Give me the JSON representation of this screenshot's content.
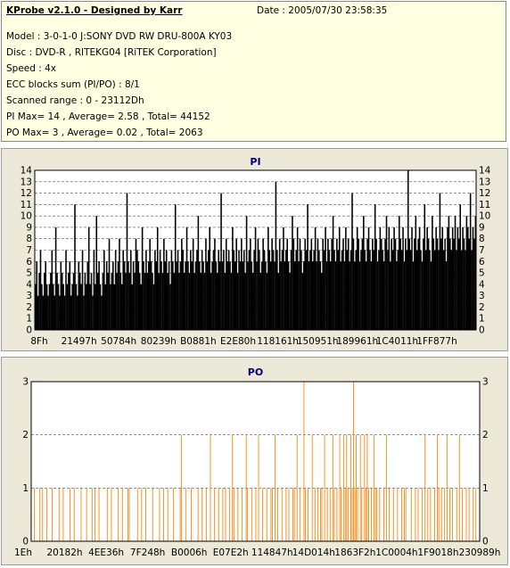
{
  "info": {
    "title": "KProbe v2.1.0 - Designed by Karr",
    "date": "Date : 2005/07/30 23:58:35",
    "lines": [
      "Model : 3-0-1-0 J:SONY    DVD RW DRU-800A  KY03",
      "Disc : DVD-R , RITEKG04 [RiTEK Corporation]",
      "Speed : 4x",
      "ECC blocks sum (PI/PO) : 8/1",
      "Scanned range : 0 - 23112Dh",
      "PI Max= 14 , Average= 2.58 , Total= 44152",
      "PO Max= 3 , Average= 0.02 , Total= 2063"
    ]
  },
  "colors": {
    "pi_series": "#000000",
    "po_series": "#ff7f00",
    "title": "#000080",
    "grid": "#555555",
    "plot_bg": "#ffffff",
    "panel_bg": "#ece9d8"
  },
  "chart_data": [
    {
      "type": "bar",
      "title": "PI",
      "xlabel": "",
      "ylabel": "",
      "ylim": [
        0,
        14
      ],
      "yticks": [
        0,
        1,
        2,
        3,
        4,
        5,
        6,
        7,
        8,
        9,
        10,
        11,
        12,
        13,
        14
      ],
      "xtick_labels": [
        "8Fh",
        "21497h",
        "50784h",
        "80239h",
        "B0881h",
        "E2E80h",
        "118161h",
        "150951h",
        "189961h",
        "1C4011h",
        "1FF877h"
      ],
      "grid": true,
      "series": [
        {
          "values": [
            4,
            6,
            3,
            5,
            7,
            4,
            3,
            5,
            6,
            4,
            3,
            4,
            5,
            7,
            4,
            3,
            9,
            5,
            4,
            3,
            6,
            5,
            4,
            3,
            7,
            4,
            5,
            6,
            3,
            4,
            5,
            11,
            4,
            3,
            6,
            5,
            4,
            7,
            3,
            5,
            4,
            6,
            9,
            4,
            5,
            3,
            7,
            4,
            10,
            5,
            6,
            4,
            3,
            5,
            7,
            4,
            6,
            5,
            8,
            4,
            5,
            6,
            4,
            7,
            5,
            6,
            8,
            5,
            4,
            7,
            6,
            5,
            12,
            6,
            5,
            7,
            4,
            6,
            5,
            8,
            7,
            6,
            5,
            4,
            9,
            6,
            5,
            7,
            5,
            6,
            8,
            6,
            5,
            4,
            7,
            6,
            9,
            5,
            7,
            6,
            5,
            8,
            6,
            7,
            5,
            6,
            4,
            7,
            6,
            5,
            11,
            6,
            7,
            5,
            6,
            8,
            7,
            5,
            6,
            9,
            6,
            5,
            7,
            6,
            8,
            5,
            6,
            7,
            10,
            6,
            5,
            7,
            6,
            5,
            8,
            6,
            7,
            9,
            5,
            6,
            7,
            8,
            6,
            5,
            7,
            6,
            12,
            6,
            7,
            5,
            8,
            6,
            7,
            6,
            5,
            9,
            7,
            6,
            8,
            5,
            7,
            6,
            8,
            6,
            7,
            5,
            10,
            6,
            7,
            8,
            6,
            5,
            7,
            9,
            6,
            8,
            7,
            5,
            6,
            8,
            7,
            6,
            5,
            9,
            7,
            6,
            8,
            7,
            6,
            13,
            7,
            5,
            8,
            6,
            7,
            9,
            6,
            7,
            8,
            6,
            5,
            7,
            10,
            8,
            6,
            7,
            9,
            6,
            8,
            7,
            5,
            6,
            8,
            7,
            11,
            6,
            7,
            8,
            6,
            7,
            9,
            6,
            8,
            7,
            6,
            5,
            8,
            7,
            9,
            6,
            8,
            7,
            6,
            8,
            10,
            7,
            6,
            8,
            7,
            9,
            6,
            7,
            8,
            6,
            9,
            7,
            8,
            6,
            7,
            12,
            8,
            6,
            7,
            9,
            8,
            6,
            7,
            8,
            10,
            7,
            6,
            8,
            9,
            7,
            6,
            8,
            7,
            11,
            8,
            6,
            7,
            9,
            8,
            7,
            6,
            8,
            10,
            7,
            9,
            6,
            8,
            7,
            9,
            8,
            6,
            7,
            10,
            8,
            7,
            9,
            6,
            8,
            7,
            14,
            8,
            7,
            9,
            6,
            8,
            10,
            7,
            8,
            9,
            7,
            6,
            8,
            11,
            7,
            9,
            8,
            7,
            6,
            10,
            8,
            7,
            9,
            8,
            7,
            12,
            8,
            9,
            7,
            8,
            6,
            9,
            10,
            8,
            7,
            9,
            8,
            10,
            7,
            9,
            8,
            11,
            7,
            9,
            8,
            7,
            10,
            9,
            8,
            12,
            7,
            9,
            8,
            10
          ]
        }
      ]
    },
    {
      "type": "bar",
      "title": "PO",
      "xlabel": "",
      "ylabel": "",
      "ylim": [
        0,
        3
      ],
      "yticks": [
        0,
        1,
        2,
        3
      ],
      "xtick_labels": [
        "1Eh",
        "20182h",
        "4EE36h",
        "7F248h",
        "B0006h",
        "E07E2h",
        "114847h",
        "14D014h",
        "1863F2h",
        "1C0004h",
        "1F9018h",
        "230989h"
      ],
      "grid": true,
      "series": [
        {
          "values": [
            0,
            0,
            1,
            0,
            0,
            0,
            1,
            0,
            1,
            0,
            0,
            1,
            0,
            0,
            0,
            1,
            0,
            0,
            0,
            0,
            1,
            0,
            0,
            1,
            0,
            0,
            0,
            0,
            1,
            0,
            0,
            1,
            0,
            0,
            0,
            0,
            1,
            0,
            0,
            0,
            1,
            0,
            0,
            0,
            1,
            0,
            1,
            0,
            0,
            1,
            0,
            0,
            0,
            0,
            0,
            1,
            0,
            0,
            1,
            0,
            0,
            0,
            0,
            1,
            0,
            0,
            1,
            0,
            0,
            0,
            1,
            1,
            0,
            0,
            0,
            0,
            0,
            1,
            0,
            0,
            1,
            0,
            0,
            1,
            0,
            0,
            0,
            0,
            1,
            0,
            0,
            0,
            0,
            1,
            0,
            0,
            1,
            0,
            0,
            1,
            0,
            0,
            0,
            1,
            0,
            0,
            0,
            0,
            1,
            2,
            0,
            0,
            1,
            0,
            0,
            0,
            1,
            0,
            0,
            0,
            0,
            1,
            0,
            0,
            1,
            0,
            0,
            1,
            0,
            0,
            2,
            0,
            0,
            1,
            0,
            0,
            1,
            0,
            0,
            1,
            0,
            1,
            0,
            0,
            1,
            0,
            2,
            1,
            0,
            0,
            1,
            0,
            0,
            1,
            0,
            0,
            2,
            1,
            0,
            0,
            1,
            0,
            0,
            1,
            0,
            2,
            0,
            0,
            1,
            0,
            0,
            1,
            0,
            0,
            1,
            1,
            0,
            2,
            0,
            1,
            0,
            0,
            1,
            0,
            0,
            1,
            0,
            1,
            0,
            0,
            1,
            1,
            0,
            2,
            0,
            1,
            0,
            0,
            3,
            1,
            0,
            1,
            0,
            0,
            2,
            0,
            1,
            0,
            1,
            0,
            1,
            1,
            0,
            2,
            0,
            1,
            0,
            1,
            0,
            2,
            1,
            0,
            1,
            0,
            2,
            1,
            0,
            2,
            1,
            2,
            1,
            0,
            2,
            1,
            3,
            1,
            2,
            1,
            0,
            2,
            1,
            0,
            2,
            1,
            2,
            1,
            0,
            1,
            0,
            2,
            1,
            1,
            0,
            1,
            0,
            0,
            1,
            0,
            2,
            0,
            1,
            0,
            0,
            1,
            0,
            0,
            1,
            0,
            0,
            1,
            0,
            1,
            1,
            0,
            0,
            0,
            1,
            0,
            0,
            1,
            0,
            1,
            0,
            0,
            1,
            0,
            2,
            0,
            1,
            0,
            1,
            0,
            0,
            1,
            0,
            2,
            1,
            0,
            1,
            0,
            1,
            0,
            2,
            0,
            1,
            0,
            1,
            0,
            0,
            1,
            0,
            2,
            0,
            1,
            0,
            0,
            1,
            0,
            1,
            0,
            0,
            1,
            0,
            1,
            0,
            0
          ]
        }
      ]
    }
  ]
}
